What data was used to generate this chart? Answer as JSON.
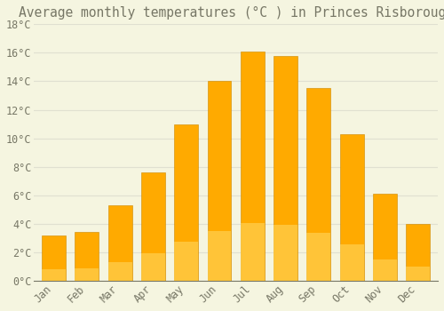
{
  "title": "Average monthly temperatures (°C ) in Princes Risborough",
  "months": [
    "Jan",
    "Feb",
    "Mar",
    "Apr",
    "May",
    "Jun",
    "Jul",
    "Aug",
    "Sep",
    "Oct",
    "Nov",
    "Dec"
  ],
  "temperatures": [
    3.2,
    3.4,
    5.3,
    7.6,
    11.0,
    14.0,
    16.1,
    15.8,
    13.5,
    10.3,
    6.1,
    4.0
  ],
  "bar_color": "#FFAA00",
  "bar_color_light": "#FFD050",
  "bar_edge_color": "#CC8800",
  "background_color": "#F5F5E0",
  "grid_color": "#E0E0D0",
  "text_color": "#777766",
  "ylim": [
    0,
    18
  ],
  "ytick_step": 2,
  "title_fontsize": 10.5,
  "tick_fontsize": 8.5,
  "font_family": "monospace"
}
